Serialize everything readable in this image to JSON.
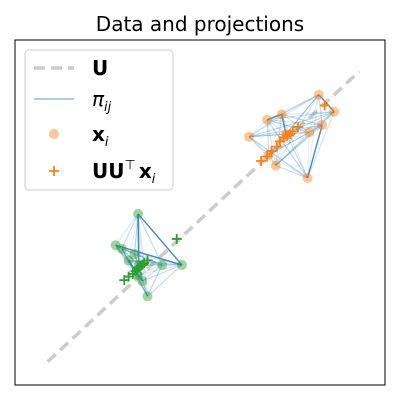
{
  "chart_data": {
    "type": "scatter",
    "title": "Data and projections",
    "xlabel": "",
    "ylabel": "",
    "xlim": [
      -1.2,
      3.1
    ],
    "ylim": [
      -1.5,
      2.35
    ],
    "ticks_visible": false,
    "grid": false,
    "legend": {
      "placement": "top-left",
      "entries": [
        {
          "key": "subspace",
          "label": "U",
          "marker": "dashed-line",
          "bold": true
        },
        {
          "key": "pairs",
          "label": "π_ij",
          "marker": "line",
          "math": "pi_ij"
        },
        {
          "key": "points",
          "label": "x_i",
          "marker": "circle",
          "bold": true,
          "math": "x_i"
        },
        {
          "key": "projections",
          "label": "UU⊤x_i",
          "marker": "plus",
          "bold": true,
          "math": "UUtx_i"
        }
      ]
    },
    "subspace_line": {
      "color": "#cccccc",
      "style": "dashed",
      "start": [
        -0.82,
        -1.24
      ],
      "end": [
        2.8,
        2.0
      ]
    },
    "pair_line_color": "#1f77b4",
    "groups": [
      {
        "color": "#ff7f0e",
        "points": [
          [
            2.33,
            1.74
          ],
          [
            2.51,
            1.55
          ],
          [
            1.73,
            1.46
          ],
          [
            1.9,
            1.52
          ],
          [
            1.95,
            1.3
          ],
          [
            2.22,
            1.32
          ],
          [
            2.37,
            1.4
          ],
          [
            1.52,
            1.27
          ],
          [
            1.75,
            1.07
          ],
          [
            1.83,
            0.95
          ],
          [
            2.2,
            0.81
          ]
        ],
        "projections": [
          [
            2.4,
            1.62
          ],
          [
            2.09,
            1.38
          ],
          [
            2.03,
            1.33
          ],
          [
            2.0,
            1.3
          ],
          [
            1.96,
            1.28
          ],
          [
            1.92,
            1.26
          ],
          [
            1.88,
            1.22
          ],
          [
            1.84,
            1.16
          ],
          [
            1.78,
            1.11
          ],
          [
            1.73,
            1.05
          ],
          [
            1.66,
            1.0
          ]
        ],
        "strong_pairs": [
          [
            2,
            3
          ],
          [
            0,
            1
          ],
          [
            6,
            10
          ],
          [
            3,
            4
          ]
        ]
      },
      {
        "color": "#2ca02c",
        "points": [
          [
            0.23,
            0.41
          ],
          [
            0.04,
            0.02
          ],
          [
            -0.03,
            0.06
          ],
          [
            0.19,
            -0.04
          ],
          [
            0.24,
            -0.16
          ],
          [
            0.12,
            -0.11
          ],
          [
            0.51,
            -0.16
          ],
          [
            0.28,
            -0.34
          ],
          [
            0.74,
            -0.16
          ],
          [
            0.34,
            -0.51
          ],
          [
            0.22,
            -0.27
          ]
        ],
        "projections": [
          [
            0.68,
            0.13
          ],
          [
            0.34,
            -0.11
          ],
          [
            0.3,
            -0.14
          ],
          [
            0.28,
            -0.16
          ],
          [
            0.26,
            -0.17
          ],
          [
            0.24,
            -0.19
          ],
          [
            0.22,
            -0.21
          ],
          [
            0.2,
            -0.23
          ],
          [
            0.17,
            -0.26
          ],
          [
            0.12,
            -0.29
          ],
          [
            0.07,
            -0.33
          ]
        ],
        "strong_pairs": [
          [
            0,
            8
          ],
          [
            0,
            4
          ],
          [
            2,
            8
          ],
          [
            5,
            7
          ]
        ]
      }
    ]
  }
}
